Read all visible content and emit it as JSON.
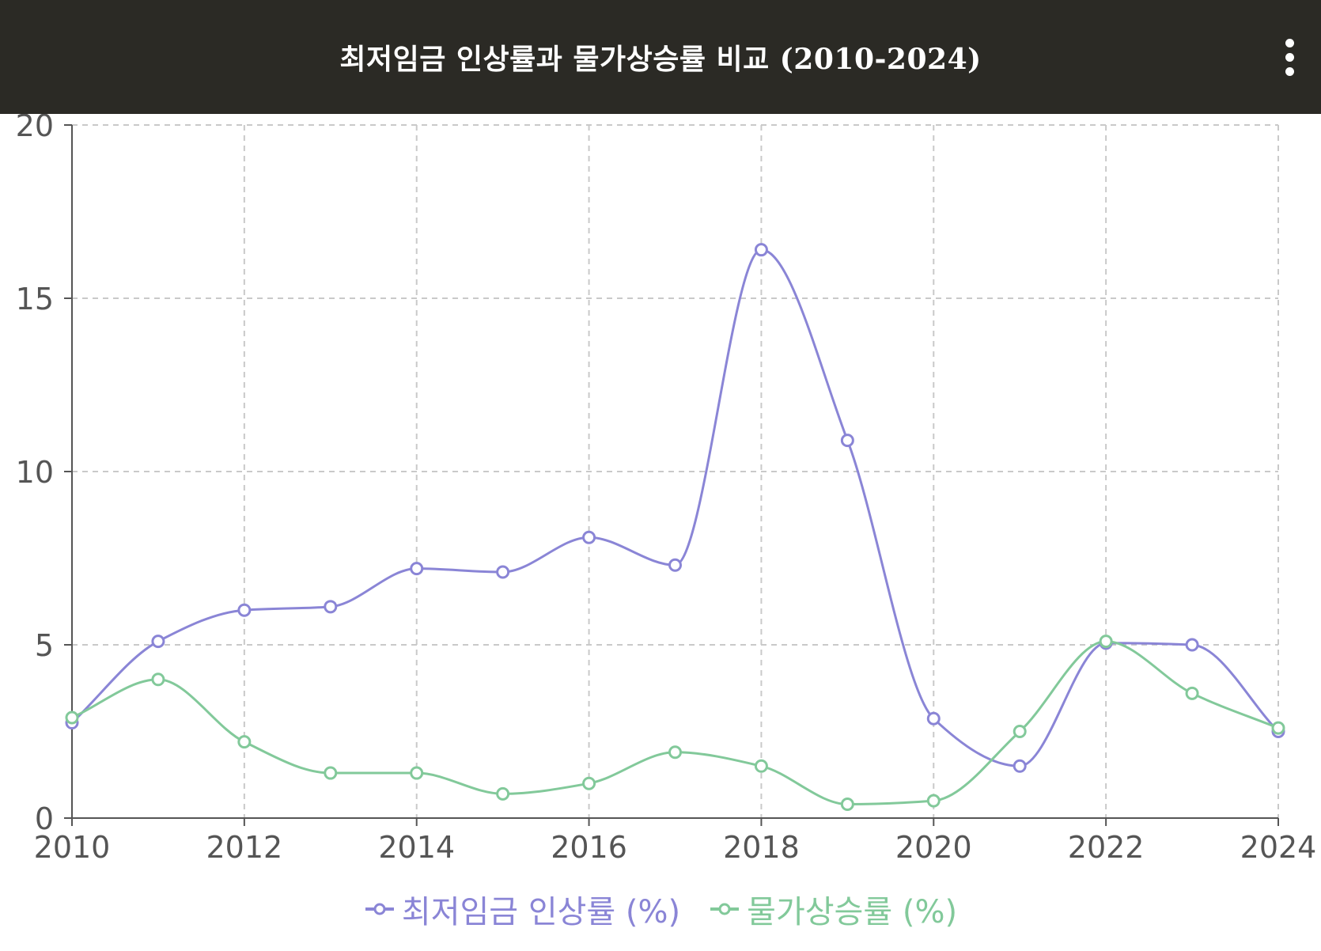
{
  "app_bar": {
    "title": "최저임금 인상률과 물가상승률 비교 (2010-2024)",
    "background": "#2b2a25",
    "menu_icon": "more-vert-icon"
  },
  "chart_data": {
    "type": "line",
    "title": "최저임금 인상률과 물가상승률 비교 (2010-2024)",
    "x": [
      2010,
      2011,
      2012,
      2013,
      2014,
      2015,
      2016,
      2017,
      2018,
      2019,
      2020,
      2021,
      2022,
      2023,
      2024
    ],
    "xlim": [
      2010,
      2024
    ],
    "ylim": [
      0,
      20
    ],
    "x_ticks": [
      "2010",
      "2012",
      "2014",
      "2016",
      "2018",
      "2020",
      "2022",
      "2024"
    ],
    "y_ticks": [
      "0",
      "5",
      "10",
      "15",
      "20"
    ],
    "grid": true,
    "legend_position": "bottom",
    "series": [
      {
        "name": "최저임금 인상률 (%)",
        "color": "#8a85d6",
        "values": [
          2.75,
          5.1,
          6.0,
          6.1,
          7.2,
          7.1,
          8.1,
          7.3,
          16.4,
          10.9,
          2.87,
          1.5,
          5.05,
          5.0,
          2.5
        ]
      },
      {
        "name": "물가상승률 (%)",
        "color": "#82c99a",
        "values": [
          2.9,
          4.0,
          2.2,
          1.3,
          1.3,
          0.7,
          1.0,
          1.9,
          1.5,
          0.4,
          0.5,
          2.5,
          5.1,
          3.6,
          2.6
        ]
      }
    ]
  }
}
